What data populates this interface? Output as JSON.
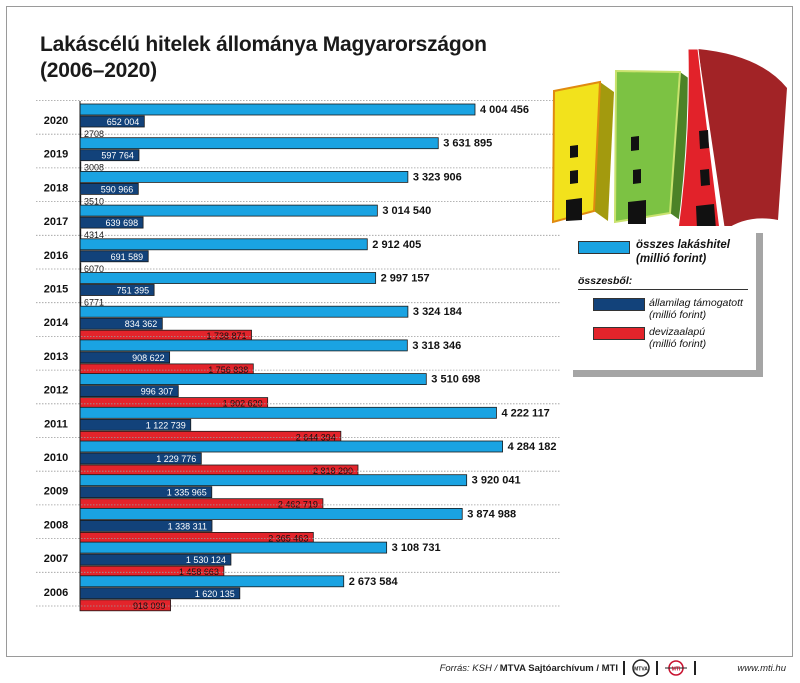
{
  "title_line1": "Lakáscélú hitelek állománya Magyarországon",
  "title_line2": "(2006–2020)",
  "legend": {
    "total": "összes lakáshitel",
    "total_unit": "(millió forint)",
    "subheading": "összesből:",
    "state": "államilag támogatott",
    "state_unit": "(millió forint)",
    "fx": "devizaalapú",
    "fx_unit": "(millió forint)"
  },
  "footer": {
    "source_label": "Forrás: KSH / ",
    "source_bold": "MTVA Sajtóarchívum / MTI",
    "website": "www.mti.hu",
    "logo1": "MTVA",
    "logo2": "MTI"
  },
  "colors": {
    "total": "#1aa3e2",
    "state": "#12427a",
    "fx": "#e3242b",
    "house_yellow": "#f3e11a",
    "house_green": "#7cc243",
    "house_red": "#e2222a"
  },
  "chart_data": {
    "type": "bar",
    "orientation": "horizontal",
    "categories": [
      "2020",
      "2019",
      "2018",
      "2017",
      "2016",
      "2015",
      "2014",
      "2013",
      "2012",
      "2011",
      "2010",
      "2009",
      "2008",
      "2007",
      "2006"
    ],
    "series": [
      {
        "name": "összes lakáshitel (millió forint)",
        "values": [
          4004456,
          3631895,
          3323906,
          3014540,
          2912405,
          2997157,
          3324184,
          3318346,
          3510698,
          4222117,
          4284182,
          3920041,
          3874988,
          3108731,
          2673584
        ],
        "labels": [
          "4 004 456",
          "3 631 895",
          "3 323 906",
          "3 014 540",
          "2 912 405",
          "2 997 157",
          "3 324 184",
          "3 318 346",
          "3 510 698",
          "4 222 117",
          "4 284 182",
          "3 920 041",
          "3 874 988",
          "3 108 731",
          "2 673 584"
        ]
      },
      {
        "name": "államilag támogatott (millió forint)",
        "values": [
          652004,
          597764,
          590966,
          639698,
          691589,
          751395,
          834362,
          908622,
          996307,
          1122739,
          1229776,
          1335965,
          1338311,
          1530124,
          1620135
        ],
        "labels": [
          "652 004",
          "597 764",
          "590 966",
          "639 698",
          "691 589",
          "751 395",
          "834 362",
          "908 622",
          "996 307",
          "1 122 739",
          "1 229 776",
          "1 335 965",
          "1 338 311",
          "1 530 124",
          "1 620 135"
        ]
      },
      {
        "name": "devizaalapú (millió forint)",
        "values": [
          2708,
          3008,
          3510,
          4314,
          6070,
          6771,
          1738871,
          1756838,
          1902620,
          2644394,
          2818290,
          2462719,
          2365463,
          1458663,
          918099
        ],
        "labels": [
          "2708",
          "3008",
          "3510",
          "4314",
          "6070",
          "6771",
          "1 738 871",
          "1 756 838",
          "1 902 620",
          "2 644 394",
          "2 818 290",
          "2 462 719",
          "2 365 463",
          "1 458 663",
          "918 099"
        ]
      }
    ]
  }
}
